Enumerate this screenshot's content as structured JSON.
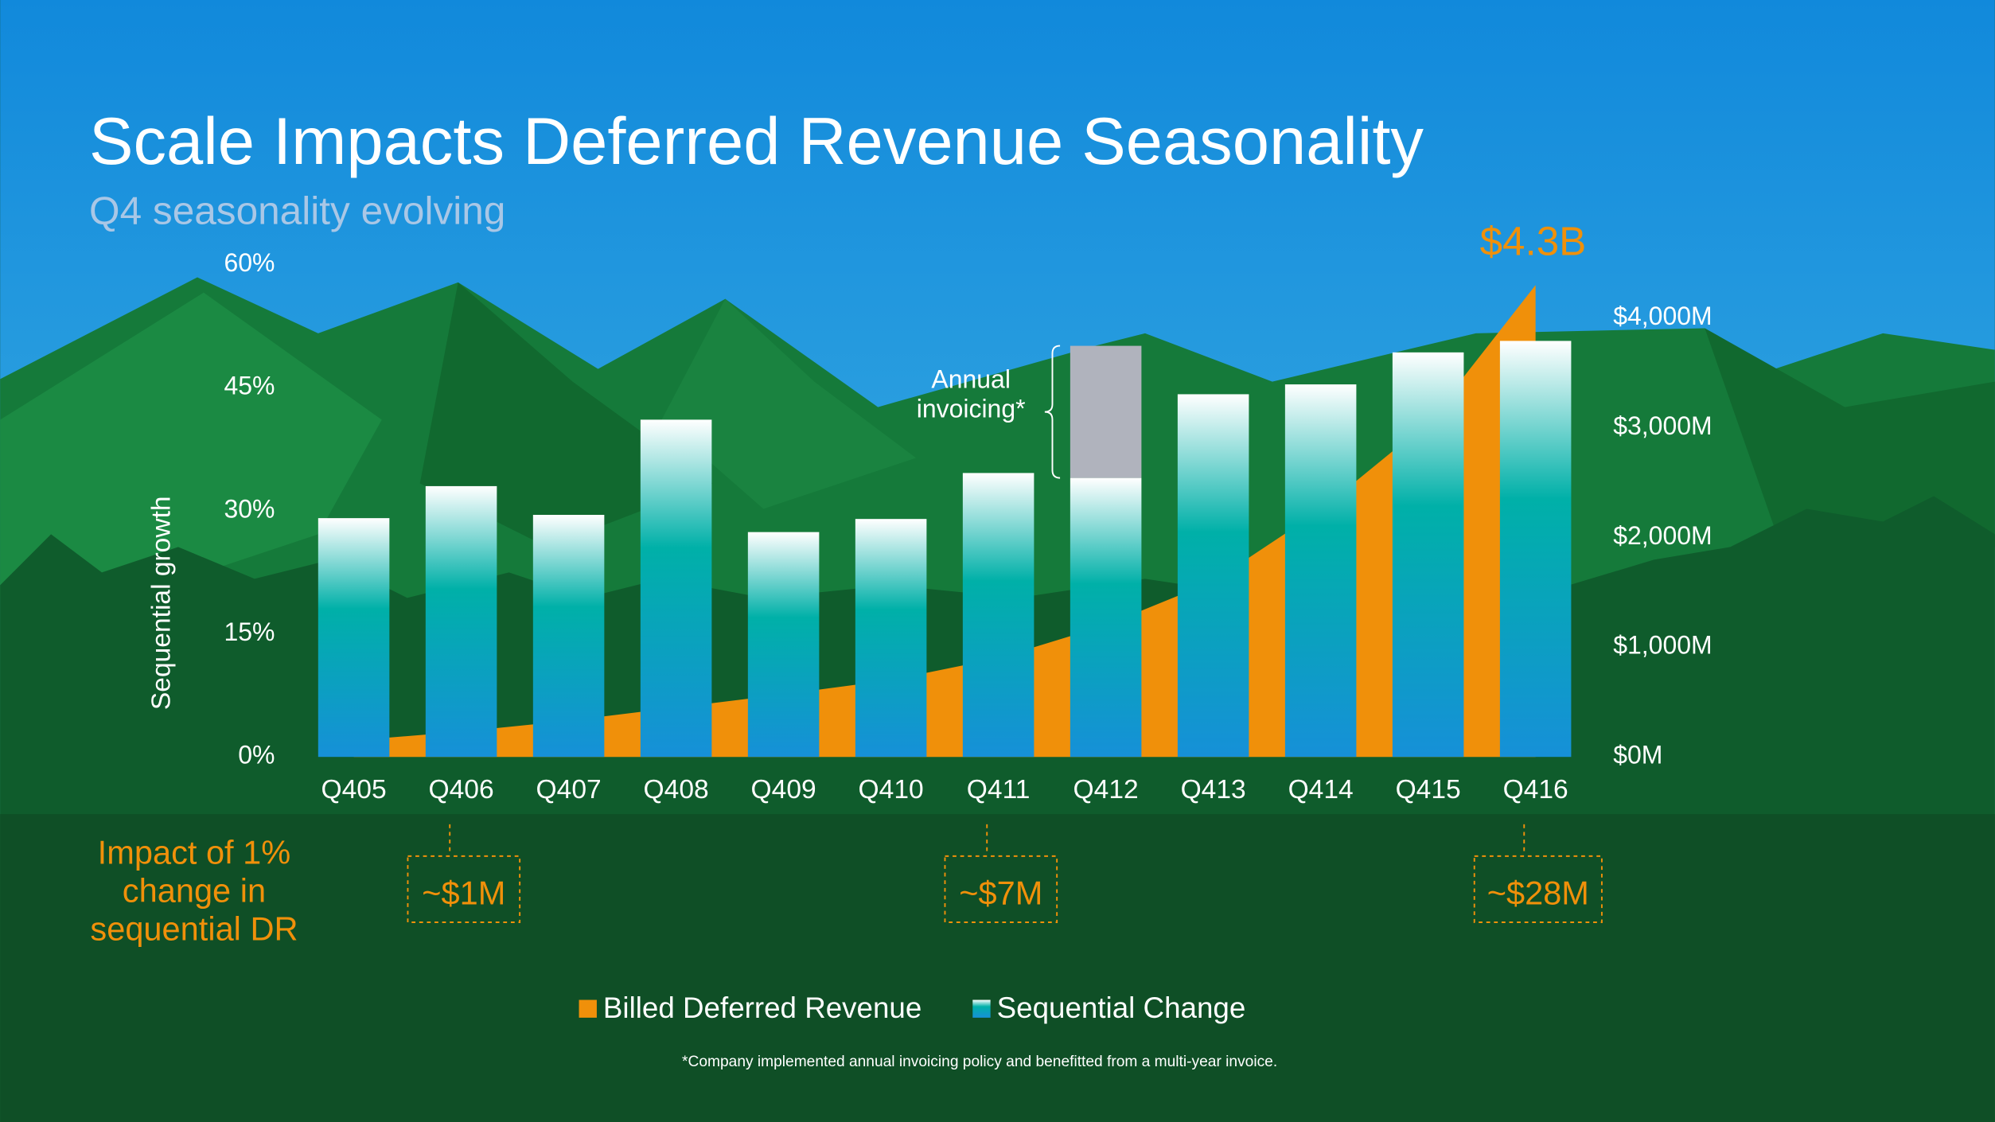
{
  "chart_data": {
    "type": "bar",
    "title": "Scale Impacts Deferred Revenue Seasonality",
    "subtitle": "Q4 seasonality evolving",
    "ylabel": "Sequential growth",
    "categories": [
      "Q405",
      "Q406",
      "Q407",
      "Q408",
      "Q409",
      "Q410",
      "Q411",
      "Q412",
      "Q413",
      "Q414",
      "Q415",
      "Q416"
    ],
    "ylim": [
      0,
      60
    ],
    "yticks": [
      {
        "value": 0,
        "label": "0%"
      },
      {
        "value": 15,
        "label": "15%"
      },
      {
        "value": 30,
        "label": "30%"
      },
      {
        "value": 45,
        "label": "45%"
      },
      {
        "value": 60,
        "label": "60%"
      }
    ],
    "y2lim": [
      0,
      4487
    ],
    "y2ticks": [
      {
        "value": 0,
        "label": "$0M"
      },
      {
        "value": 1000,
        "label": "$1,000M"
      },
      {
        "value": 2000,
        "label": "$2,000M"
      },
      {
        "value": 3000,
        "label": "$3,000M"
      },
      {
        "value": 4000,
        "label": "$4,000M"
      }
    ],
    "series": [
      {
        "name": "Billed Deferred Revenue",
        "type": "area",
        "axis": "y2",
        "color": "#f0900a",
        "values": [
          150,
          230,
          330,
          450,
          570,
          700,
          900,
          1200,
          1600,
          2250,
          3050,
          4300
        ],
        "value_labels": [
          null,
          null,
          null,
          null,
          null,
          null,
          null,
          null,
          null,
          null,
          null,
          "$4.3B"
        ]
      },
      {
        "name": "Sequential Change",
        "type": "bar",
        "color": "#00b0a8",
        "values": [
          29.1,
          33.0,
          29.5,
          41.1,
          27.4,
          29.0,
          34.6,
          34.0,
          44.2,
          45.4,
          49.3,
          50.7
        ]
      },
      {
        "name": "Annual invoicing*",
        "type": "bar",
        "stacked": true,
        "in_legend": false,
        "color": "#b0b3bd",
        "values": [
          null,
          null,
          null,
          null,
          null,
          null,
          null,
          16.1,
          null,
          null,
          null,
          null
        ]
      }
    ],
    "impact": {
      "title": "Impact of 1% change in sequential DR",
      "color": "#f0900a",
      "labels": [
        null,
        "~$1M",
        null,
        null,
        null,
        null,
        "~$7M",
        null,
        null,
        null,
        null,
        "~$28M"
      ]
    },
    "legend": "bottom",
    "footnote": "*Company implemented annual invoicing policy and benefitted from a multi-year invoice."
  }
}
